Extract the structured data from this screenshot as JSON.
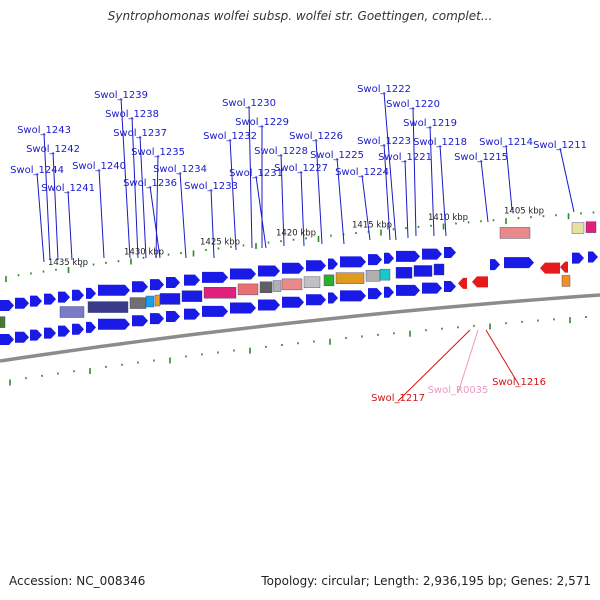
{
  "title": "Syntrophomonas wolfei subsp. wolfei str. Goettingen, complet...",
  "footer": {
    "accession": "Accession: NC_008346",
    "summary": "Topology: circular; Length: 2,936,195 bp; Genes: 2,571"
  },
  "colors": {
    "forward_gene": "#1a1ae6",
    "reverse_gene": "#e61a1a",
    "label_forward": "#1a1ac8",
    "label_reverse": "#d21414",
    "label_rna": "#e89ac0",
    "tick": "#2a8a2a",
    "backbone": "#8c8c8c"
  },
  "scale_labels": [
    "1435 kbp",
    "1430 kbp",
    "1425 kbp",
    "1420 kbp",
    "1415 kbp",
    "1410 kbp",
    "1405 kbp"
  ],
  "gene_labels_forward": [
    "Swol_1239",
    "Swol_1238",
    "Swol_1237",
    "Swol_1235",
    "Swol_1236",
    "Swol_1234",
    "Swol_1233",
    "Swol_1243",
    "Swol_1242",
    "Swol_1244",
    "Swol_1241",
    "Swol_1240",
    "Swol_1230",
    "Swol_1229",
    "Swol_1232",
    "Swol_1228",
    "Swol_1231",
    "Swol_1227",
    "Swol_1226",
    "Swol_1225",
    "Swol_1224",
    "Swol_1223",
    "Swol_1222",
    "Swol_1220",
    "Swol_1221",
    "Swol_1219",
    "Swol_1218",
    "Swol_1215",
    "Swol_1214",
    "Swol_1211"
  ],
  "gene_labels_reverse": [
    "Swol_1217",
    "Swol_1216"
  ],
  "gene_labels_rna": [
    "Swol_R0035"
  ]
}
